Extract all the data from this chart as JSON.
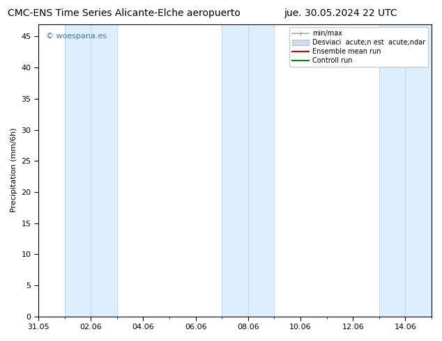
{
  "title_left": "CMC-ENS Time Series Alicante-Elche aeropuerto",
  "title_right": "jue. 30.05.2024 22 UTC",
  "ylabel": "Precipitation (mm/6h)",
  "ylim": [
    0,
    47
  ],
  "yticks": [
    0,
    5,
    10,
    15,
    20,
    25,
    30,
    35,
    40,
    45
  ],
  "xtick_labels": [
    "31.05",
    "02.06",
    "04.06",
    "06.06",
    "08.06",
    "10.06",
    "12.06",
    "14.06"
  ],
  "xtick_positions": [
    0,
    2,
    4,
    6,
    8,
    10,
    12,
    14
  ],
  "xlim": [
    0,
    15
  ],
  "shaded_bands": [
    {
      "x_start": 1,
      "x_end": 3,
      "color": "#ddeeff"
    },
    {
      "x_start": 7,
      "x_end": 9,
      "color": "#ddeeff"
    },
    {
      "x_start": 13,
      "x_end": 15,
      "color": "#ddeeff"
    }
  ],
  "vertical_lines_in_bands": [
    1,
    2,
    3,
    7,
    8,
    9,
    13,
    14,
    15
  ],
  "vertical_line_color": "#b8d4e8",
  "watermark_text": "© woespana.es",
  "watermark_color": "#3377bb",
  "legend_labels": [
    "min/max",
    "Desviaci  acute;n est  acute;ndar",
    "Ensemble mean run",
    "Controll run"
  ],
  "legend_colors_fill": [
    "#bbbbbb",
    "#ccddf0",
    null,
    null
  ],
  "legend_colors_line": [
    null,
    null,
    "#dd0000",
    "#008800"
  ],
  "background_color": "#ffffff",
  "plot_bg_color": "#ffffff",
  "title_fontsize": 10,
  "tick_fontsize": 8,
  "ylabel_fontsize": 8,
  "watermark_fontsize": 8,
  "legend_fontsize": 7
}
